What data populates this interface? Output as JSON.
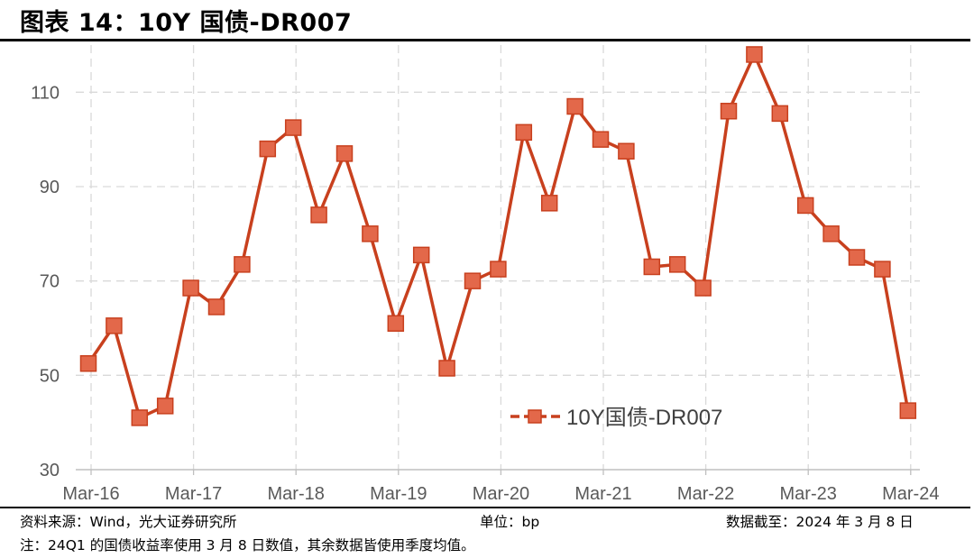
{
  "title": "图表 14：10Y 国债-DR007",
  "footer": {
    "source": "资料来源：Wind，光大证券研究所",
    "unit": "单位：bp",
    "cutoff": "数据截至：2024 年 3 月 8 日",
    "note": "注：24Q1 的国债收益率使用 3 月 8 日数值，其余数据皆使用季度均值。"
  },
  "colors": {
    "line": "#C8401E",
    "marker_fill": "#E3684A",
    "grid": "#D9D9D9",
    "axis": "#BFBFBF",
    "tick_text": "#595959"
  },
  "chart_data": {
    "type": "line",
    "title": "",
    "xlabel": "",
    "ylabel": "",
    "ylim": [
      30,
      120
    ],
    "yticks": [
      30,
      50,
      70,
      90,
      110
    ],
    "grid": true,
    "legend_position": "bottom-center-right",
    "categories": [
      "2016Q1",
      "2016Q2",
      "2016Q3",
      "2016Q4",
      "2017Q1",
      "2017Q2",
      "2017Q3",
      "2017Q4",
      "2018Q1",
      "2018Q2",
      "2018Q3",
      "2018Q4",
      "2019Q1",
      "2019Q2",
      "2019Q3",
      "2019Q4",
      "2020Q1",
      "2020Q2",
      "2020Q3",
      "2020Q4",
      "2021Q1",
      "2021Q2",
      "2021Q3",
      "2021Q4",
      "2022Q1",
      "2022Q2",
      "2022Q3",
      "2022Q4",
      "2023Q1",
      "2023Q2",
      "2023Q3",
      "2023Q4",
      "2024Q1"
    ],
    "xtick_labels": [
      "Mar-16",
      "Mar-17",
      "Mar-18",
      "Mar-19",
      "Mar-20",
      "Mar-21",
      "Mar-22",
      "Mar-23",
      "Mar-24"
    ],
    "series": [
      {
        "name": "10Y国债-DR007",
        "values": [
          52.5,
          60.5,
          41,
          43.5,
          68.5,
          64.5,
          73.5,
          98,
          102.5,
          84,
          97,
          80,
          61,
          75.5,
          51.5,
          70,
          72.5,
          101.5,
          86.5,
          107,
          100,
          97.5,
          73,
          73.5,
          68.5,
          106,
          118,
          105.5,
          86,
          80,
          75,
          72.5,
          42.5
        ]
      }
    ]
  }
}
